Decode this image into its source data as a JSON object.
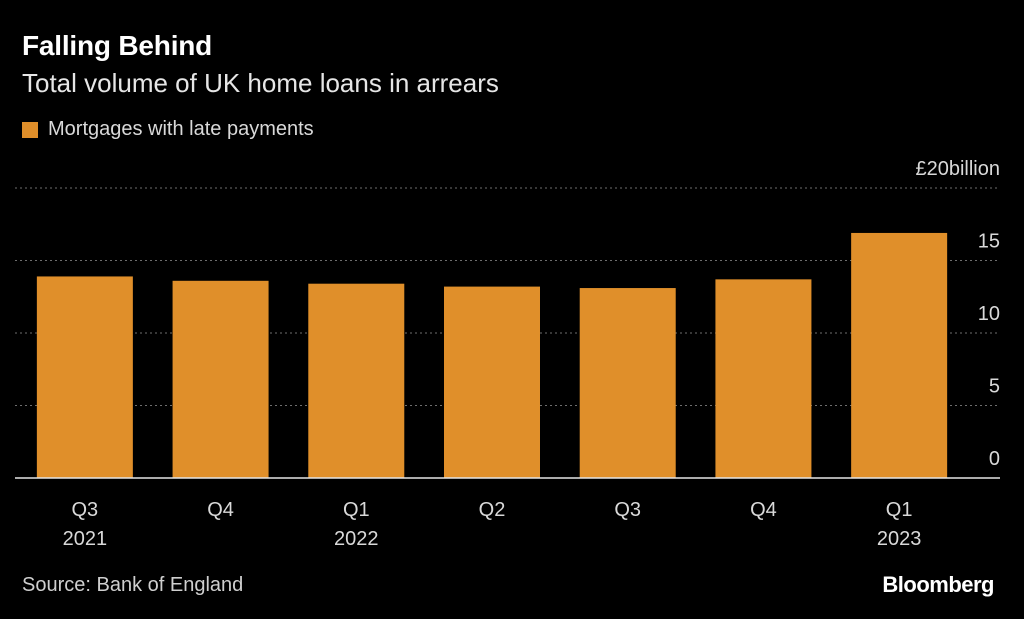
{
  "header": {
    "title": "Falling Behind",
    "subtitle": "Total volume of UK home loans in arrears"
  },
  "legend": {
    "label": "Mortgages with late payments",
    "color": "#e08f2a"
  },
  "footer": {
    "source": "Source: Bank of England",
    "brand": "Bloomberg"
  },
  "chart_data": {
    "type": "bar",
    "title": "Falling Behind",
    "subtitle": "Total volume of UK home loans in arrears",
    "xlabel": "",
    "ylabel": "",
    "ylim": [
      0,
      20
    ],
    "yticks": [
      0,
      5,
      10,
      15,
      20
    ],
    "ytick_labels": [
      "0",
      "5",
      "10",
      "15",
      "£20billion"
    ],
    "grid": true,
    "legend_position": "top-left",
    "bar_color": "#e08f2a",
    "categories": [
      {
        "label": "Q3",
        "year": "2021"
      },
      {
        "label": "Q4",
        "year": ""
      },
      {
        "label": "Q1",
        "year": "2022"
      },
      {
        "label": "Q2",
        "year": ""
      },
      {
        "label": "Q3",
        "year": ""
      },
      {
        "label": "Q4",
        "year": ""
      },
      {
        "label": "Q1",
        "year": "2023"
      }
    ],
    "series": [
      {
        "name": "Mortgages with late payments",
        "values": [
          13.9,
          13.6,
          13.4,
          13.2,
          13.1,
          13.7,
          16.9
        ]
      }
    ]
  }
}
